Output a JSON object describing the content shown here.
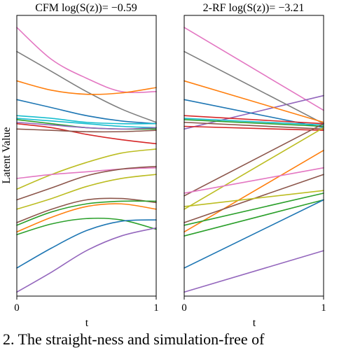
{
  "chart_data": [
    {
      "type": "line",
      "title": "CFM log(S(z))= −0.59",
      "xlabel": "t",
      "ylabel": "Latent Value",
      "xlim": [
        0,
        1
      ],
      "xticks": [
        "0",
        "1"
      ],
      "ylim": [
        -1.05,
        1.05
      ],
      "grid": false,
      "series": [
        {
          "color": "#e377c2",
          "x": [
            0,
            0.25,
            0.5,
            0.75,
            1
          ],
          "values": [
            0.96,
            0.72,
            0.58,
            0.48,
            0.48
          ]
        },
        {
          "color": "#7f7f7f",
          "x": [
            0,
            0.25,
            0.5,
            0.75,
            1
          ],
          "values": [
            0.78,
            0.63,
            0.48,
            0.35,
            0.25
          ]
        },
        {
          "color": "#ff7f0e",
          "x": [
            0,
            0.25,
            0.5,
            0.75,
            1
          ],
          "values": [
            0.56,
            0.49,
            0.46,
            0.47,
            0.51
          ]
        },
        {
          "color": "#1f77b4",
          "x": [
            0,
            0.25,
            0.5,
            0.75,
            1
          ],
          "values": [
            0.42,
            0.36,
            0.3,
            0.26,
            0.24
          ]
        },
        {
          "color": "#17becf",
          "x": [
            0,
            0.25,
            0.5,
            0.75,
            1
          ],
          "values": [
            0.3,
            0.28,
            0.25,
            0.24,
            0.24
          ]
        },
        {
          "color": "#17becf",
          "x": [
            0,
            0.25,
            0.5,
            0.75,
            1
          ],
          "values": [
            0.28,
            0.26,
            0.24,
            0.22,
            0.21
          ]
        },
        {
          "color": "#2ca02c",
          "x": [
            0,
            0.25,
            0.5,
            0.75,
            1
          ],
          "values": [
            0.27,
            0.24,
            0.21,
            0.2,
            0.2
          ]
        },
        {
          "color": "#9467bd",
          "x": [
            0,
            0.25,
            0.5,
            0.75,
            1
          ],
          "values": [
            0.25,
            0.23,
            0.21,
            0.2,
            0.21
          ]
        },
        {
          "color": "#d62728",
          "x": [
            0,
            0.25,
            0.5,
            0.75,
            1
          ],
          "values": [
            0.24,
            0.21,
            0.16,
            0.12,
            0.09
          ]
        },
        {
          "color": "#8c564b",
          "x": [
            0,
            0.25,
            0.5,
            0.75,
            1
          ],
          "values": [
            0.2,
            0.19,
            0.18,
            0.18,
            0.19
          ]
        },
        {
          "color": "#bcbd22",
          "x": [
            0,
            0.25,
            0.5,
            0.75,
            1
          ],
          "values": [
            -0.25,
            -0.14,
            -0.05,
            0.02,
            0.05
          ]
        },
        {
          "color": "#e377c2",
          "x": [
            0,
            0.25,
            0.5,
            0.75,
            1
          ],
          "values": [
            -0.17,
            -0.14,
            -0.12,
            -0.1,
            -0.09
          ]
        },
        {
          "color": "#8c564b",
          "x": [
            0,
            0.25,
            0.5,
            0.75,
            1
          ],
          "values": [
            -0.33,
            -0.24,
            -0.15,
            -0.1,
            -0.08
          ]
        },
        {
          "color": "#bcbd22",
          "x": [
            0,
            0.25,
            0.5,
            0.75,
            1
          ],
          "values": [
            -0.4,
            -0.32,
            -0.23,
            -0.17,
            -0.14
          ]
        },
        {
          "color": "#8c564b",
          "x": [
            0,
            0.25,
            0.5,
            0.75,
            1
          ],
          "values": [
            -0.5,
            -0.4,
            -0.33,
            -0.32,
            -0.35
          ]
        },
        {
          "color": "#2ca02c",
          "x": [
            0,
            0.25,
            0.5,
            0.75,
            1
          ],
          "values": [
            -0.52,
            -0.42,
            -0.36,
            -0.34,
            -0.34
          ]
        },
        {
          "color": "#ff7f0e",
          "x": [
            0,
            0.25,
            0.5,
            0.75,
            1
          ],
          "values": [
            -0.57,
            -0.46,
            -0.38,
            -0.36,
            -0.4
          ]
        },
        {
          "color": "#2ca02c",
          "x": [
            0,
            0.25,
            0.5,
            0.75,
            1
          ],
          "values": [
            -0.59,
            -0.51,
            -0.47,
            -0.48,
            -0.55
          ]
        },
        {
          "color": "#1f77b4",
          "x": [
            0,
            0.25,
            0.5,
            0.75,
            1
          ],
          "values": [
            -0.84,
            -0.69,
            -0.56,
            -0.49,
            -0.48
          ]
        },
        {
          "color": "#9467bd",
          "x": [
            0,
            0.25,
            0.5,
            0.75,
            1
          ],
          "values": [
            -1.02,
            -0.87,
            -0.71,
            -0.6,
            -0.54
          ]
        }
      ]
    },
    {
      "type": "line",
      "title": "2-RF log(S(z))= −3.21",
      "xlabel": "t",
      "ylabel": "",
      "xlim": [
        0,
        1
      ],
      "xticks": [
        "0",
        "1"
      ],
      "ylim": [
        -1.05,
        1.05
      ],
      "grid": false,
      "series": [
        {
          "color": "#e377c2",
          "x": [
            0,
            1
          ],
          "values": [
            0.96,
            0.34
          ]
        },
        {
          "color": "#9467bd",
          "x": [
            0,
            1
          ],
          "values": [
            0.2,
            0.45
          ]
        },
        {
          "color": "#7f7f7f",
          "x": [
            0,
            1
          ],
          "values": [
            0.78,
            0.24
          ]
        },
        {
          "color": "#ff7f0e",
          "x": [
            0,
            1
          ],
          "values": [
            0.56,
            0.25
          ]
        },
        {
          "color": "#1f77b4",
          "x": [
            0,
            1
          ],
          "values": [
            0.42,
            0.21
          ]
        },
        {
          "color": "#d62728",
          "x": [
            0,
            1
          ],
          "values": [
            0.3,
            0.24
          ]
        },
        {
          "color": "#17becf",
          "x": [
            0,
            1
          ],
          "values": [
            0.28,
            0.23
          ]
        },
        {
          "color": "#2ca02c",
          "x": [
            0,
            1
          ],
          "values": [
            0.27,
            0.22
          ]
        },
        {
          "color": "#8c564b",
          "x": [
            0,
            1
          ],
          "values": [
            0.25,
            0.2
          ]
        },
        {
          "color": "#d62728",
          "x": [
            0,
            1
          ],
          "values": [
            0.22,
            0.19
          ]
        },
        {
          "color": "#8c564b",
          "x": [
            0,
            1
          ],
          "values": [
            -0.3,
            0.24
          ]
        },
        {
          "color": "#bcbd22",
          "x": [
            0,
            1
          ],
          "values": [
            -0.4,
            0.21
          ]
        },
        {
          "color": "#ff7f0e",
          "x": [
            0,
            1
          ],
          "values": [
            -0.57,
            0.04
          ]
        },
        {
          "color": "#e377c2",
          "x": [
            0,
            1
          ],
          "values": [
            -0.28,
            -0.09
          ]
        },
        {
          "color": "#8c564b",
          "x": [
            0,
            1
          ],
          "values": [
            -0.5,
            -0.14
          ]
        },
        {
          "color": "#bcbd22",
          "x": [
            0,
            1
          ],
          "values": [
            -0.38,
            -0.26
          ]
        },
        {
          "color": "#2ca02c",
          "x": [
            0,
            1
          ],
          "values": [
            -0.52,
            -0.28
          ]
        },
        {
          "color": "#2ca02c",
          "x": [
            0,
            1
          ],
          "values": [
            -0.6,
            -0.33
          ]
        },
        {
          "color": "#1f77b4",
          "x": [
            0,
            1
          ],
          "values": [
            -0.84,
            -0.33
          ]
        },
        {
          "color": "#9467bd",
          "x": [
            0,
            1
          ],
          "values": [
            -1.02,
            -0.71
          ]
        }
      ]
    }
  ],
  "caption": "2. The straight-ness and simulation-free of"
}
